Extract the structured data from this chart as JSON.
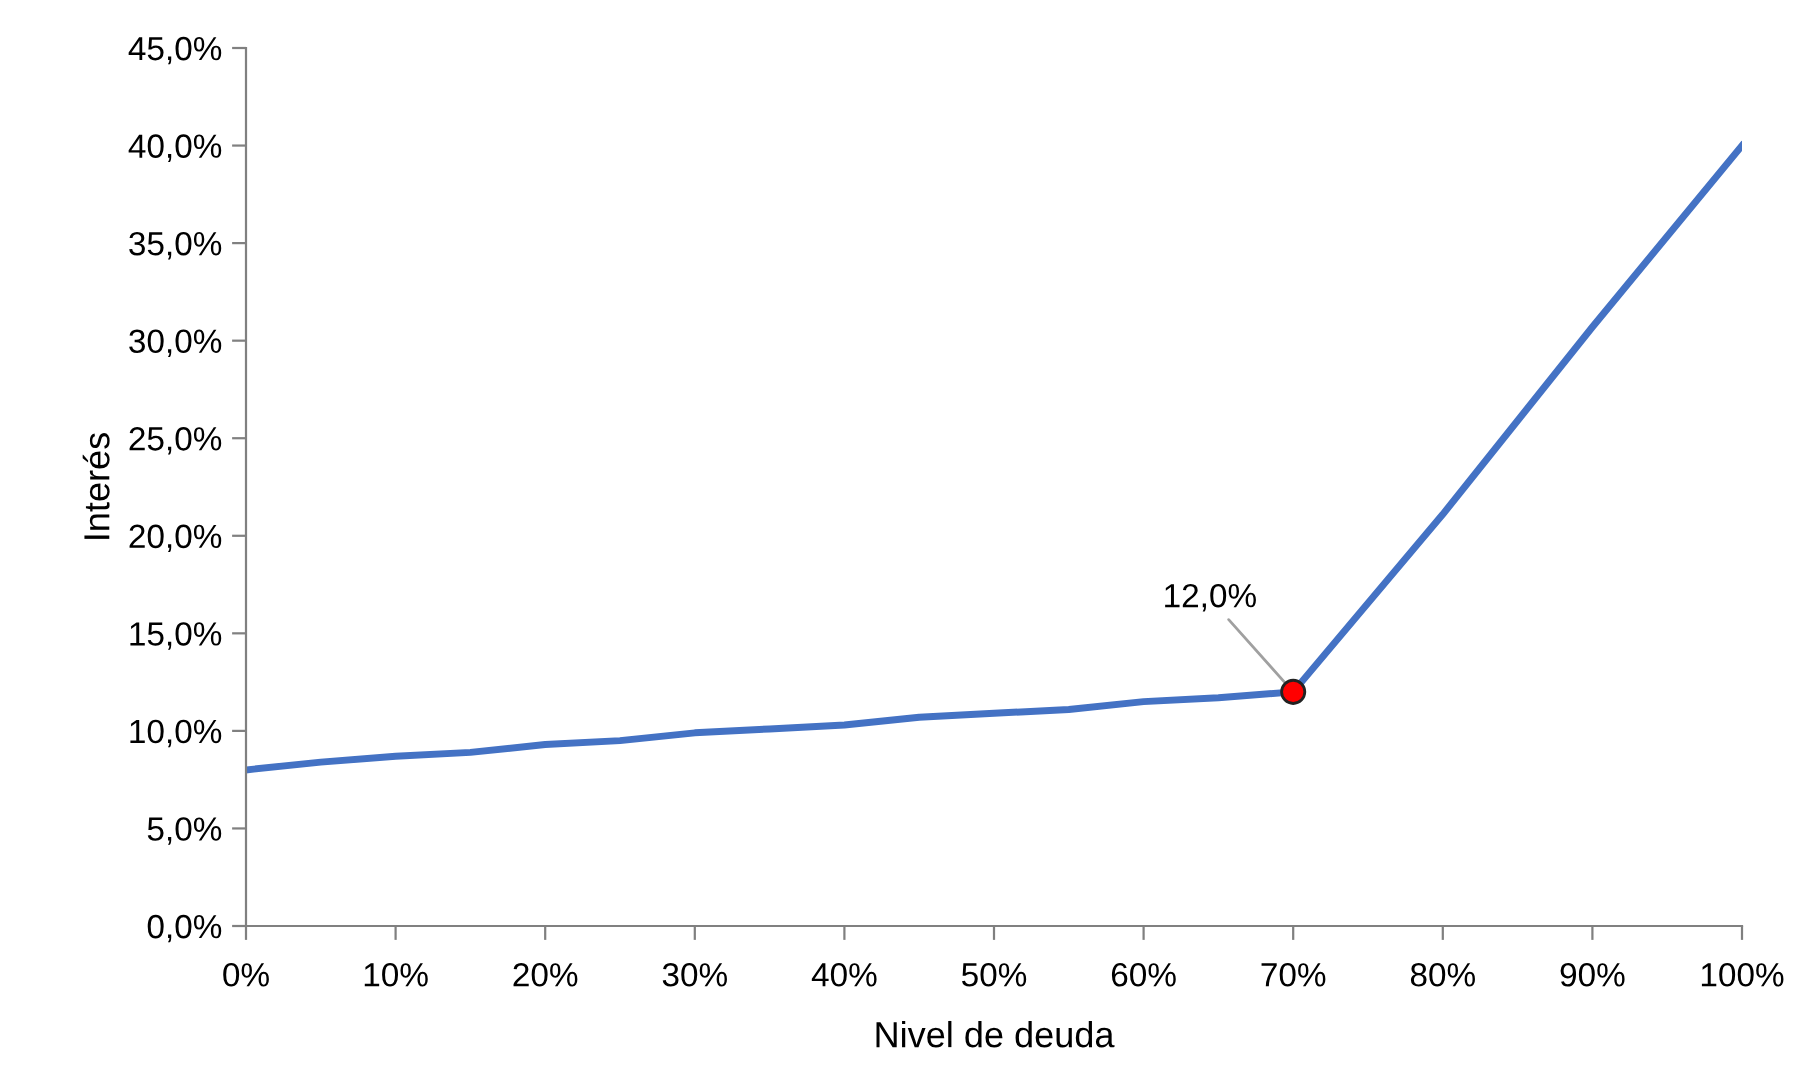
{
  "chart_data": {
    "type": "line",
    "xlabel": "Nivel de deuda",
    "ylabel": "Interés",
    "x": [
      0,
      5,
      10,
      15,
      20,
      25,
      30,
      35,
      40,
      45,
      50,
      55,
      60,
      65,
      70,
      80,
      90,
      100
    ],
    "series": [
      {
        "color": "#4472c4",
        "marker": "none",
        "values": [
          8.0,
          8.4,
          8.7,
          8.9,
          9.3,
          9.5,
          9.9,
          10.1,
          10.3,
          10.7,
          10.9,
          11.1,
          11.5,
          11.7,
          12.0,
          21.1,
          30.7,
          40.0
        ]
      },
      {
        "type": "scatter",
        "marker": "circle",
        "color": "#ff0000",
        "x": [
          70
        ],
        "values": [
          12.0
        ]
      }
    ],
    "annotations": [
      {
        "text": "12,0%",
        "x": 70,
        "y": 12.0
      }
    ],
    "xlim": [
      0,
      100
    ],
    "xticks": [
      {
        "value": 0,
        "label": "0%"
      },
      {
        "value": 10,
        "label": "10%"
      },
      {
        "value": 20,
        "label": "20%"
      },
      {
        "value": 30,
        "label": "30%"
      },
      {
        "value": 40,
        "label": "40%"
      },
      {
        "value": 50,
        "label": "50%"
      },
      {
        "value": 60,
        "label": "60%"
      },
      {
        "value": 70,
        "label": "70%"
      },
      {
        "value": 80,
        "label": "80%"
      },
      {
        "value": 90,
        "label": "90%"
      },
      {
        "value": 100,
        "label": "100%"
      }
    ],
    "ylim": [
      0,
      45
    ],
    "yticks": [
      {
        "value": 0,
        "label": "0,0%"
      },
      {
        "value": 5,
        "label": "5,0%"
      },
      {
        "value": 10,
        "label": "10,0%"
      },
      {
        "value": 15,
        "label": "15,0%"
      },
      {
        "value": 20,
        "label": "20,0%"
      },
      {
        "value": 25,
        "label": "25,0%"
      },
      {
        "value": 30,
        "label": "30,0%"
      },
      {
        "value": 35,
        "label": "35,0%"
      },
      {
        "value": 40,
        "label": "40,0%"
      },
      {
        "value": 45,
        "label": "45,0%"
      }
    ],
    "grid": false,
    "legend": false,
    "line_style": "solid"
  }
}
